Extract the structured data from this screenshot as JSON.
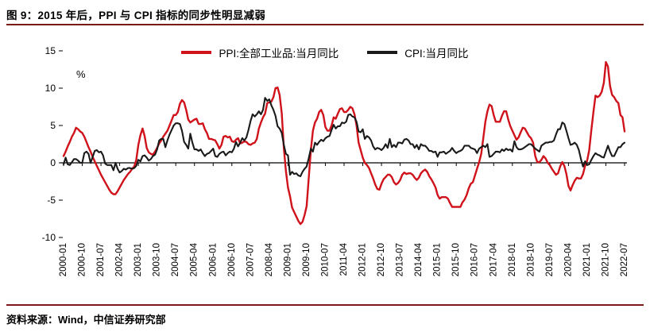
{
  "header": {
    "title": "图 9：2015 年后，PPI 与 CPI 指标的同步性明显减弱"
  },
  "footer": {
    "source": "资料来源：Wind，中信证券研究部"
  },
  "colors": {
    "rule": "#7a1a15",
    "ppi": "#d0121b",
    "cpi": "#1a1a1a",
    "axis": "#000000"
  },
  "chart_data": {
    "type": "line",
    "title": "图 9：2015 年后，PPI 与 CPI 指标的同步性明显减弱",
    "xlabel": "",
    "ylabel": "%",
    "ylim": [
      -10,
      15
    ],
    "y_ticks": [
      -10,
      -5,
      0,
      5,
      10,
      15
    ],
    "grid": false,
    "legend_position": "top-center",
    "x_start": "2000-01",
    "x_interval_months": 1,
    "x_tick_every": 9,
    "x_tick_labels": [
      "2000-01",
      "2000-10",
      "2001-07",
      "2002-04",
      "2003-01",
      "2003-10",
      "2004-07",
      "2005-04",
      "2006-01",
      "2006-10",
      "2007-07",
      "2008-04",
      "2009-01",
      "2009-10",
      "2010-07",
      "2011-04",
      "2012-01",
      "2012-10",
      "2013-07",
      "2014-04",
      "2015-01",
      "2015-10",
      "2016-07",
      "2017-04",
      "2018-01",
      "2018-10",
      "2019-07",
      "2020-04",
      "2021-01",
      "2021-10",
      "2022-07"
    ],
    "series": [
      {
        "name": "PPI:全部工业品:当月同比",
        "color": "#d0121b",
        "values": [
          0.9,
          1.5,
          2.2,
          2.8,
          3.5,
          4.0,
          4.7,
          4.5,
          4.2,
          4.0,
          3.5,
          2.8,
          2.1,
          1.5,
          0.8,
          0.2,
          -0.4,
          -1.0,
          -1.6,
          -2.1,
          -2.6,
          -3.1,
          -3.6,
          -4.0,
          -4.2,
          -4.2,
          -3.8,
          -3.3,
          -2.8,
          -2.3,
          -1.9,
          -1.5,
          -1.2,
          -0.8,
          -0.5,
          0.4,
          2.4,
          3.7,
          4.6,
          3.6,
          2.0,
          1.4,
          1.2,
          1.1,
          1.5,
          2.0,
          2.6,
          3.0,
          3.5,
          3.9,
          4.3,
          5.0,
          5.7,
          6.4,
          6.4,
          6.8,
          7.9,
          8.4,
          8.1,
          7.1,
          5.8,
          5.4,
          5.6,
          5.8,
          5.9,
          5.2,
          5.2,
          5.3,
          4.5,
          4.0,
          3.2,
          3.2,
          3.1,
          3.0,
          2.5,
          1.9,
          2.4,
          3.5,
          3.6,
          3.4,
          3.5,
          2.9,
          2.8,
          3.1,
          3.3,
          2.6,
          2.7,
          2.9,
          2.8,
          2.5,
          2.4,
          2.6,
          2.7,
          3.2,
          4.6,
          5.4,
          6.1,
          6.6,
          8.0,
          8.1,
          8.2,
          8.8,
          10.0,
          10.1,
          9.1,
          6.6,
          2.0,
          -1.1,
          -3.3,
          -4.5,
          -6.0,
          -6.6,
          -7.2,
          -7.8,
          -8.2,
          -7.9,
          -7.0,
          -5.8,
          -2.1,
          1.7,
          4.3,
          5.4,
          5.9,
          6.8,
          7.1,
          6.4,
          4.8,
          4.3,
          4.3,
          5.0,
          6.1,
          5.9,
          6.6,
          7.2,
          7.3,
          6.8,
          6.8,
          7.1,
          7.5,
          7.3,
          6.5,
          5.0,
          2.7,
          1.7,
          0.7,
          0.0,
          -0.3,
          -0.7,
          -1.4,
          -2.1,
          -2.9,
          -3.5,
          -3.6,
          -2.8,
          -2.2,
          -1.9,
          -1.6,
          -1.6,
          -1.9,
          -2.6,
          -2.9,
          -2.7,
          -2.3,
          -1.6,
          -1.3,
          -1.5,
          -1.4,
          -1.4,
          -1.6,
          -2.0,
          -2.3,
          -2.0,
          -1.4,
          -1.1,
          -0.9,
          -1.2,
          -1.8,
          -2.2,
          -2.7,
          -3.3,
          -4.3,
          -4.8,
          -4.6,
          -4.6,
          -4.6,
          -4.8,
          -5.4,
          -5.9,
          -5.9,
          -5.9,
          -5.9,
          -5.9,
          -5.3,
          -4.9,
          -4.3,
          -3.4,
          -2.8,
          -2.6,
          -1.7,
          -0.8,
          0.1,
          1.2,
          3.3,
          5.5,
          6.9,
          7.8,
          7.6,
          6.4,
          5.5,
          5.5,
          5.5,
          6.3,
          6.9,
          6.9,
          5.8,
          4.9,
          4.3,
          3.7,
          3.1,
          3.4,
          4.1,
          4.7,
          4.6,
          4.1,
          3.6,
          3.3,
          2.7,
          0.9,
          0.1,
          0.1,
          0.4,
          0.9,
          0.6,
          0.0,
          -0.3,
          -0.8,
          -1.2,
          -1.6,
          -1.4,
          -0.5,
          0.1,
          -0.4,
          -1.5,
          -3.1,
          -3.7,
          -3.0,
          -2.4,
          -2.0,
          -2.1,
          -2.1,
          -1.5,
          -0.4,
          0.3,
          1.7,
          4.4,
          6.8,
          9.0,
          8.8,
          9.0,
          9.5,
          10.7,
          13.5,
          12.9,
          10.3,
          9.1,
          8.8,
          8.3,
          8.0,
          6.4,
          6.1,
          4.2
        ]
      },
      {
        "name": "CPI:当月同比",
        "color": "#1a1a1a",
        "values": [
          -0.2,
          0.7,
          -0.2,
          -0.3,
          0.1,
          0.5,
          0.5,
          0.3,
          0.0,
          0.0,
          1.3,
          1.5,
          1.2,
          0.0,
          0.8,
          1.6,
          1.7,
          1.4,
          1.5,
          1.0,
          -0.1,
          -0.3,
          -0.3,
          -0.3,
          -1.0,
          0.0,
          -0.8,
          -1.3,
          -1.1,
          -0.8,
          -0.9,
          -0.7,
          -0.7,
          -0.8,
          -0.7,
          -0.4,
          0.4,
          0.2,
          0.9,
          1.0,
          0.7,
          0.3,
          0.5,
          0.9,
          1.1,
          1.8,
          3.0,
          3.2,
          3.2,
          2.1,
          3.0,
          3.8,
          4.4,
          5.0,
          5.3,
          5.3,
          5.2,
          4.3,
          2.8,
          2.4,
          1.9,
          3.9,
          2.7,
          1.8,
          1.8,
          1.6,
          1.8,
          1.3,
          0.9,
          1.2,
          1.3,
          1.6,
          1.9,
          0.9,
          0.8,
          1.2,
          1.4,
          1.5,
          1.0,
          1.3,
          1.5,
          1.4,
          1.9,
          2.8,
          2.2,
          2.7,
          3.3,
          3.0,
          3.4,
          4.4,
          5.6,
          6.5,
          6.2,
          6.5,
          6.9,
          6.5,
          7.1,
          8.7,
          8.3,
          8.5,
          7.7,
          7.1,
          6.3,
          4.9,
          4.6,
          4.0,
          2.4,
          1.2,
          1.0,
          -1.6,
          -1.2,
          -1.5,
          -1.4,
          -1.7,
          -1.8,
          -1.2,
          -0.8,
          -0.5,
          0.6,
          1.9,
          1.5,
          2.7,
          2.4,
          2.8,
          3.1,
          2.9,
          3.3,
          3.5,
          3.6,
          4.4,
          5.1,
          4.6,
          4.9,
          4.9,
          5.4,
          5.3,
          5.5,
          6.4,
          6.5,
          6.2,
          6.1,
          5.5,
          4.2,
          4.1,
          4.5,
          3.2,
          3.6,
          3.4,
          3.0,
          2.2,
          1.8,
          2.0,
          1.9,
          1.7,
          2.0,
          2.5,
          2.0,
          3.2,
          2.1,
          2.4,
          2.1,
          2.7,
          2.7,
          2.6,
          3.1,
          3.2,
          3.0,
          2.5,
          2.5,
          2.0,
          2.4,
          1.8,
          2.5,
          2.3,
          2.3,
          2.0,
          1.6,
          1.6,
          1.4,
          1.5,
          0.8,
          1.4,
          1.4,
          1.5,
          1.2,
          1.4,
          1.6,
          2.0,
          1.6,
          1.3,
          1.5,
          1.6,
          1.8,
          2.3,
          2.3,
          2.3,
          2.0,
          1.9,
          1.8,
          1.3,
          1.9,
          2.1,
          2.3,
          2.1,
          2.5,
          0.8,
          0.9,
          1.2,
          1.5,
          1.5,
          1.4,
          1.8,
          1.6,
          1.9,
          1.7,
          1.8,
          1.5,
          2.9,
          2.1,
          1.8,
          1.8,
          1.9,
          2.1,
          2.3,
          2.5,
          2.5,
          2.2,
          1.9,
          1.7,
          1.5,
          2.3,
          2.5,
          2.7,
          2.7,
          2.8,
          2.8,
          3.0,
          3.8,
          4.5,
          4.5,
          5.4,
          5.2,
          4.3,
          3.3,
          2.4,
          2.5,
          2.7,
          2.4,
          1.7,
          0.5,
          -0.5,
          0.2,
          -0.3,
          -0.2,
          0.4,
          0.9,
          1.3,
          1.1,
          1.0,
          0.8,
          0.7,
          1.5,
          2.3,
          1.5,
          0.9,
          0.9,
          1.5,
          2.1,
          2.1,
          2.5,
          2.7
        ]
      }
    ]
  }
}
